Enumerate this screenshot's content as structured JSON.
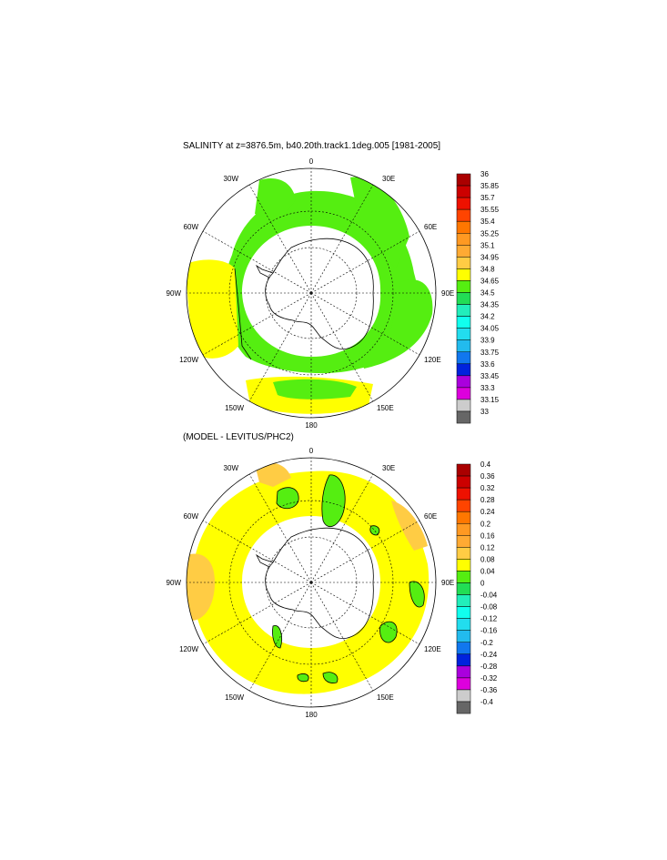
{
  "panel1": {
    "title": "SALINITY at z=3876.5m, b40.20th.track1.1deg.005 [1981-2005]",
    "lon_labels": {
      "top": "0",
      "l30": "30W",
      "r30": "30E",
      "l60": "60W",
      "r60": "60E",
      "l90": "90W",
      "r90": "90E",
      "l120": "120W",
      "r120": "120E",
      "l150": "150W",
      "r150": "150E",
      "bottom": "180"
    },
    "colorbar": {
      "levels": [
        "36",
        "35.85",
        "35.7",
        "35.55",
        "35.4",
        "35.25",
        "35.1",
        "34.95",
        "34.8",
        "34.65",
        "34.5",
        "34.35",
        "34.2",
        "34.05",
        "33.9",
        "33.75",
        "33.6",
        "33.45",
        "33.3",
        "33.15",
        "33"
      ],
      "colors": [
        "#aa0000",
        "#cc0000",
        "#ee1100",
        "#ff4400",
        "#ff7700",
        "#ff9922",
        "#ffaa33",
        "#ffcc44",
        "#ffff00",
        "#55ee11",
        "#22dd55",
        "#22eebb",
        "#11ffee",
        "#22ddee",
        "#22bbee",
        "#1177ee",
        "#0022dd",
        "#aa00dd",
        "#dd00dd",
        "#cccccc",
        "#666666"
      ]
    }
  },
  "panel2": {
    "title": "(MODEL - LEVITUS/PHC2)",
    "lon_labels": {
      "top": "0",
      "l30": "30W",
      "r30": "30E",
      "l60": "60W",
      "r60": "60E",
      "l90": "90W",
      "r90": "90E",
      "l120": "120W",
      "r120": "120E",
      "l150": "150W",
      "r150": "150E",
      "bottom": "180"
    },
    "colorbar": {
      "levels": [
        "0.4",
        "0.36",
        "0.32",
        "0.28",
        "0.24",
        "0.2",
        "0.16",
        "0.12",
        "0.08",
        "0.04",
        "0",
        "-0.04",
        "-0.08",
        "-0.12",
        "-0.16",
        "-0.2",
        "-0.24",
        "-0.28",
        "-0.32",
        "-0.36",
        "-0.4"
      ],
      "colors": [
        "#aa0000",
        "#cc0000",
        "#ee1100",
        "#ff4400",
        "#ff7700",
        "#ff9922",
        "#ffaa33",
        "#ffcc44",
        "#ffff00",
        "#55ee11",
        "#22dd55",
        "#22eebb",
        "#11ffee",
        "#22ddee",
        "#22bbee",
        "#1177ee",
        "#0022dd",
        "#aa00dd",
        "#dd00dd",
        "#cccccc",
        "#666666"
      ]
    }
  },
  "fill_colors": {
    "green": "#55ee11",
    "yellow": "#ffff00",
    "orange": "#ffcc44"
  }
}
